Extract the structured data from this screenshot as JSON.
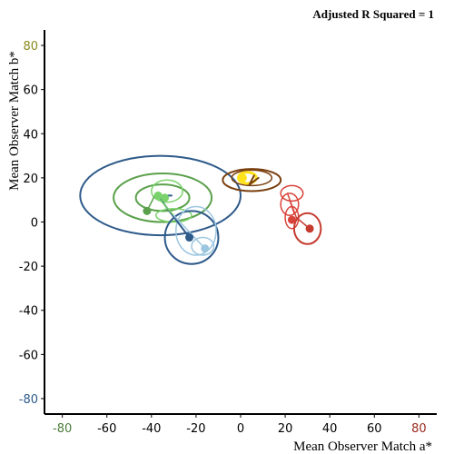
{
  "chart_data": {
    "type": "scatter",
    "annotation": "Adjusted R Squared = 1",
    "xlabel": "Mean Observer Match a*",
    "ylabel": "Mean Observer Match b*",
    "xlim": [
      -88,
      88
    ],
    "ylim": [
      -87,
      87
    ],
    "x_ticks": [
      {
        "value": -80,
        "label": "-80",
        "color": "#4a7d3a"
      },
      {
        "value": -60,
        "label": "-60",
        "color": "#000000"
      },
      {
        "value": -40,
        "label": "-40",
        "color": "#000000"
      },
      {
        "value": -20,
        "label": "-20",
        "color": "#000000"
      },
      {
        "value": 0,
        "label": "0",
        "color": "#000000"
      },
      {
        "value": 20,
        "label": "20",
        "color": "#000000"
      },
      {
        "value": 40,
        "label": "40",
        "color": "#000000"
      },
      {
        "value": 60,
        "label": "60",
        "color": "#000000"
      },
      {
        "value": 80,
        "label": "80",
        "color": "#9b2a1e"
      }
    ],
    "y_ticks": [
      {
        "value": 80,
        "label": "80",
        "color": "#8a8a1e"
      },
      {
        "value": 60,
        "label": "60",
        "color": "#000000"
      },
      {
        "value": 40,
        "label": "40",
        "color": "#000000"
      },
      {
        "value": 20,
        "label": "20",
        "color": "#000000"
      },
      {
        "value": 0,
        "label": "0",
        "color": "#000000"
      },
      {
        "value": -20,
        "label": "-20",
        "color": "#000000"
      },
      {
        "value": -40,
        "label": "-40",
        "color": "#000000"
      },
      {
        "value": -60,
        "label": "-60",
        "color": "#000000"
      },
      {
        "value": -80,
        "label": "-80",
        "color": "#2e5a8a"
      }
    ],
    "ellipses": [
      {
        "cx": -36,
        "cy": 12,
        "rx": 36,
        "ry": 18,
        "color": "#2e5a8a",
        "width": 2
      },
      {
        "cx": -35,
        "cy": 11,
        "rx": 22,
        "ry": 11,
        "color": "#5aa04a",
        "width": 2
      },
      {
        "cx": -35,
        "cy": 11,
        "rx": 12,
        "ry": 6,
        "color": "#5aa04a",
        "width": 2
      },
      {
        "cx": -33,
        "cy": 14,
        "rx": 7,
        "ry": 5,
        "color": "#7ad36a",
        "width": 1.5
      },
      {
        "cx": -30,
        "cy": 3,
        "rx": 8,
        "ry": 3,
        "color": "#7ad36a",
        "width": 1.5
      },
      {
        "cx": -22,
        "cy": -7,
        "rx": 12,
        "ry": 12,
        "color": "#2e5a8a",
        "width": 2
      },
      {
        "cx": -20,
        "cy": -4,
        "rx": 9,
        "ry": 11,
        "color": "#9cc6df",
        "width": 1.5
      },
      {
        "cx": -17,
        "cy": -11,
        "rx": 5,
        "ry": 4,
        "color": "#9cc6df",
        "width": 1.5
      },
      {
        "cx": 5,
        "cy": 19,
        "rx": 13,
        "ry": 5,
        "color": "#7a3f0f",
        "width": 2
      },
      {
        "cx": 5,
        "cy": 20,
        "rx": 9,
        "ry": 3.5,
        "color": "#7a3f0f",
        "width": 1.5
      },
      {
        "cx": 3,
        "cy": 20,
        "rx": 4,
        "ry": 2.5,
        "color": "#ffe31a",
        "width": 3
      },
      {
        "cx": 23,
        "cy": 13,
        "rx": 5,
        "ry": 3.5,
        "color": "#d9443a",
        "width": 1.5
      },
      {
        "cx": 22,
        "cy": 8,
        "rx": 4,
        "ry": 5,
        "color": "#d9443a",
        "width": 1.5
      },
      {
        "cx": 23,
        "cy": 2,
        "rx": 3,
        "ry": 5,
        "color": "#d9443a",
        "width": 1.5
      },
      {
        "cx": 30,
        "cy": -3,
        "rx": 6,
        "ry": 7,
        "color": "#c53a2e",
        "width": 2
      }
    ],
    "series": [
      {
        "name": "",
        "color": "#5aa04a",
        "points": [
          [
            -42,
            5
          ]
        ]
      },
      {
        "name": "",
        "color": "#7ad36a",
        "points": [
          [
            -37,
            12
          ],
          [
            -34,
            11
          ]
        ]
      },
      {
        "name": "",
        "color": "#2e5a8a",
        "points": [
          [
            -23,
            -7
          ]
        ]
      },
      {
        "name": "",
        "color": "#9cc6df",
        "points": [
          [
            -16,
            -12
          ]
        ]
      },
      {
        "name": "",
        "color": "#ffe31a",
        "points": [
          [
            1,
            20
          ]
        ]
      },
      {
        "name": "",
        "color": "#c53a2e",
        "points": [
          [
            31,
            -3
          ]
        ]
      },
      {
        "name": "",
        "color": "#d9443a",
        "points": [
          [
            23,
            1
          ]
        ]
      }
    ],
    "segments": [
      {
        "from": [
          -38,
          13
        ],
        "to": [
          -35,
          9
        ],
        "color": "#2e5a8a",
        "width": 2
      },
      {
        "from": [
          -35,
          9
        ],
        "to": [
          -23,
          -7
        ],
        "color": "#2e5a8a",
        "width": 2
      },
      {
        "from": [
          -36,
          12
        ],
        "to": [
          -31,
          12
        ],
        "color": "#2e5a8a",
        "width": 2
      },
      {
        "from": [
          -37,
          11
        ],
        "to": [
          -30,
          3
        ],
        "color": "#7ad36a",
        "width": 1.5
      },
      {
        "from": [
          -30,
          3
        ],
        "to": [
          -16,
          -12
        ],
        "color": "#9cc6df",
        "width": 1.5
      },
      {
        "from": [
          -38,
          13
        ],
        "to": [
          -42,
          5
        ],
        "color": "#5aa04a",
        "width": 1.5
      },
      {
        "from": [
          6,
          21
        ],
        "to": [
          4,
          17
        ],
        "color": "#7a3f0f",
        "width": 2
      },
      {
        "from": [
          4,
          17
        ],
        "to": [
          8,
          20
        ],
        "color": "#7a3f0f",
        "width": 2
      },
      {
        "from": [
          21,
          13
        ],
        "to": [
          25,
          2
        ],
        "color": "#d9443a",
        "width": 1.5
      },
      {
        "from": [
          25,
          2
        ],
        "to": [
          31,
          -3
        ],
        "color": "#c53a2e",
        "width": 1.5
      },
      {
        "from": [
          22,
          10
        ],
        "to": [
          24,
          4
        ],
        "color": "#d9443a",
        "width": 1.5
      }
    ],
    "grid": false,
    "legend": "none"
  }
}
